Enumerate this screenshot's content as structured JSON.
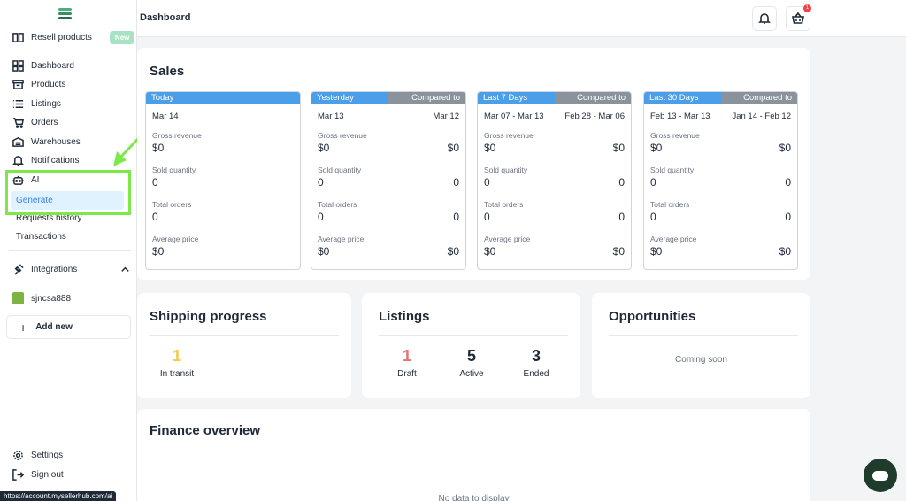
{
  "sidebar": {
    "resell": {
      "label": "Resell products",
      "badge": "New"
    },
    "items": [
      {
        "label": "Dashboard",
        "icon": "dashboard-icon"
      },
      {
        "label": "Products",
        "icon": "archive-icon"
      },
      {
        "label": "Listings",
        "icon": "list-icon"
      },
      {
        "label": "Orders",
        "icon": "cart-icon"
      },
      {
        "label": "Warehouses",
        "icon": "warehouse-icon"
      },
      {
        "label": "Notifications",
        "icon": "bell-icon"
      },
      {
        "label": "AI",
        "icon": "robot-icon"
      }
    ],
    "ai_sub": [
      "Generate",
      "Requests history"
    ],
    "transactions": "Transactions",
    "integrations": "Integrations",
    "store": "sjncsa888",
    "add_new": "Add new",
    "settings": "Settings",
    "sign_out": "Sign out",
    "url_tip": "https://account.mysellerhub.com/ai"
  },
  "header": {
    "title": "Dashboard",
    "cart_count": "1"
  },
  "sales": {
    "title": "Sales",
    "labels": {
      "gross": "Gross revenue",
      "qty": "Sold quantity",
      "orders": "Total orders",
      "avg": "Average price"
    },
    "columns": [
      {
        "head": "Today",
        "compare": "",
        "date": "Mar 14",
        "compare_date": "",
        "gross": "$0",
        "gross_c": "",
        "qty": "0",
        "qty_c": "",
        "orders": "0",
        "orders_c": "",
        "avg": "$0",
        "avg_c": ""
      },
      {
        "head": "Yesterday",
        "compare": "Compared to",
        "date": "Mar 13",
        "compare_date": "Mar 12",
        "gross": "$0",
        "gross_c": "$0",
        "qty": "0",
        "qty_c": "0",
        "orders": "0",
        "orders_c": "0",
        "avg": "$0",
        "avg_c": "$0"
      },
      {
        "head": "Last 7 Days",
        "compare": "Compared to",
        "date": "Mar 07 - Mar 13",
        "compare_date": "Feb 28 - Mar 06",
        "gross": "$0",
        "gross_c": "$0",
        "qty": "0",
        "qty_c": "0",
        "orders": "0",
        "orders_c": "0",
        "avg": "$0",
        "avg_c": "$0"
      },
      {
        "head": "Last 30 Days",
        "compare": "Compared to",
        "date": "Feb 13 - Mar 13",
        "compare_date": "Jan 14 - Feb 12",
        "gross": "$0",
        "gross_c": "$0",
        "qty": "0",
        "qty_c": "0",
        "orders": "0",
        "orders_c": "0",
        "avg": "$0",
        "avg_c": "$0"
      }
    ]
  },
  "shipping": {
    "title": "Shipping progress",
    "in_transit_value": "1",
    "in_transit_label": "In transit"
  },
  "listings": {
    "title": "Listings",
    "draft_value": "1",
    "draft_label": "Draft",
    "active_value": "5",
    "active_label": "Active",
    "ended_value": "3",
    "ended_label": "Ended"
  },
  "opportunities": {
    "title": "Opportunities",
    "text": "Coming soon"
  },
  "finance": {
    "title": "Finance overview",
    "empty": "No data to display"
  },
  "colors": {
    "accent_green": "#7ce84a",
    "header_blue": "#4a9fe8",
    "header_gray": "#8a939c",
    "shipping_num": "#f2c94c",
    "draft_num": "#e57373"
  }
}
